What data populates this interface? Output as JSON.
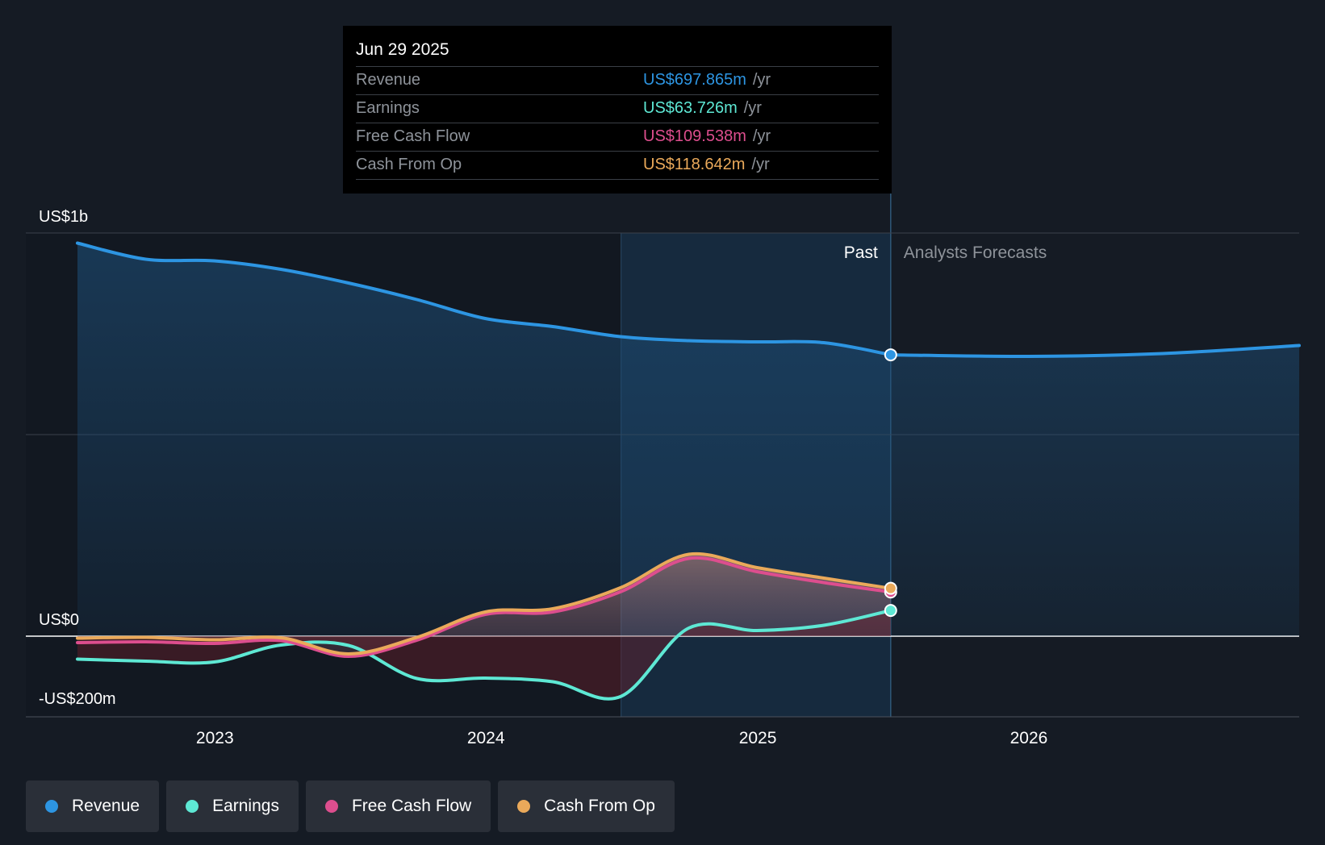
{
  "tooltip": {
    "date": "Jun 29 2025",
    "rows": [
      {
        "label": "Revenue",
        "value": "US$697.865m",
        "unit": "/yr",
        "color": "#2d95e2"
      },
      {
        "label": "Earnings",
        "value": "US$63.726m",
        "unit": "/yr",
        "color": "#5ee8d4"
      },
      {
        "label": "Free Cash Flow",
        "value": "US$109.538m",
        "unit": "/yr",
        "color": "#dd4e8e"
      },
      {
        "label": "Cash From Op",
        "value": "US$118.642m",
        "unit": "/yr",
        "color": "#eaa95a"
      }
    ]
  },
  "legend": [
    {
      "label": "Revenue",
      "color": "#2d95e2"
    },
    {
      "label": "Earnings",
      "color": "#5ee8d4"
    },
    {
      "label": "Free Cash Flow",
      "color": "#dd4e8e"
    },
    {
      "label": "Cash From Op",
      "color": "#eaa95a"
    }
  ],
  "chart_data": {
    "type": "line",
    "y_tick_labels": [
      {
        "value": 1000,
        "label": "US$1b"
      },
      {
        "value": 0,
        "label": "US$0"
      },
      {
        "value": -200,
        "label": "-US$200m"
      }
    ],
    "ylim": [
      -200,
      1000
    ],
    "xlim": [
      "2022-06-30",
      "2026-12-31"
    ],
    "x_tick_labels": [
      {
        "date": "2023-01-01",
        "label": "2023"
      },
      {
        "date": "2024-01-01",
        "label": "2024"
      },
      {
        "date": "2025-01-01",
        "label": "2025"
      },
      {
        "date": "2026-01-01",
        "label": "2026"
      }
    ],
    "past_label": "Past",
    "forecast_label": "Analysts Forecasts",
    "past_end": "2025-06-29",
    "highlight_start": "2024-07-01",
    "series": [
      {
        "name": "Revenue",
        "color": "#2d95e2",
        "points": [
          [
            "2022-06-30",
            975
          ],
          [
            "2022-09-30",
            935
          ],
          [
            "2022-12-31",
            931
          ],
          [
            "2023-03-31",
            910
          ],
          [
            "2023-06-30",
            876
          ],
          [
            "2023-09-30",
            835
          ],
          [
            "2023-12-31",
            788
          ],
          [
            "2024-03-31",
            768
          ],
          [
            "2024-06-30",
            743
          ],
          [
            "2024-09-30",
            733
          ],
          [
            "2024-12-31",
            730
          ],
          [
            "2025-03-31",
            728
          ],
          [
            "2025-06-29",
            697.865
          ]
        ],
        "forecast": [
          [
            "2025-06-29",
            697.865
          ],
          [
            "2025-12-31",
            694
          ],
          [
            "2026-06-30",
            701
          ],
          [
            "2026-12-31",
            721
          ]
        ]
      },
      {
        "name": "Earnings",
        "color": "#5ee8d4",
        "points": [
          [
            "2022-06-30",
            -57
          ],
          [
            "2022-09-30",
            -62
          ],
          [
            "2022-12-31",
            -64
          ],
          [
            "2023-03-31",
            -22
          ],
          [
            "2023-06-30",
            -23
          ],
          [
            "2023-09-30",
            -105
          ],
          [
            "2023-12-31",
            -104
          ],
          [
            "2024-03-31",
            -113
          ],
          [
            "2024-06-30",
            -150
          ],
          [
            "2024-09-30",
            20
          ],
          [
            "2024-12-31",
            14
          ],
          [
            "2025-03-31",
            27
          ],
          [
            "2025-06-29",
            63.726
          ]
        ]
      },
      {
        "name": "Free Cash Flow",
        "color": "#dd4e8e",
        "points": [
          [
            "2022-06-30",
            -16
          ],
          [
            "2022-09-30",
            -14
          ],
          [
            "2022-12-31",
            -18
          ],
          [
            "2023-03-31",
            -11
          ],
          [
            "2023-06-30",
            -50
          ],
          [
            "2023-09-30",
            -10
          ],
          [
            "2023-12-31",
            54
          ],
          [
            "2024-03-31",
            60
          ],
          [
            "2024-06-30",
            110
          ],
          [
            "2024-09-30",
            193
          ],
          [
            "2024-12-31",
            160
          ],
          [
            "2025-03-31",
            133
          ],
          [
            "2025-06-29",
            109.538
          ]
        ]
      },
      {
        "name": "Cash From Op",
        "color": "#eaa95a",
        "points": [
          [
            "2022-06-30",
            -5
          ],
          [
            "2022-09-30",
            -3
          ],
          [
            "2022-12-31",
            -9
          ],
          [
            "2023-03-31",
            -4
          ],
          [
            "2023-06-30",
            -44
          ],
          [
            "2023-09-30",
            -3
          ],
          [
            "2023-12-31",
            60
          ],
          [
            "2024-03-31",
            68
          ],
          [
            "2024-06-30",
            120
          ],
          [
            "2024-09-30",
            203
          ],
          [
            "2024-12-31",
            170
          ],
          [
            "2025-03-31",
            144
          ],
          [
            "2025-06-29",
            118.642
          ]
        ]
      }
    ]
  }
}
